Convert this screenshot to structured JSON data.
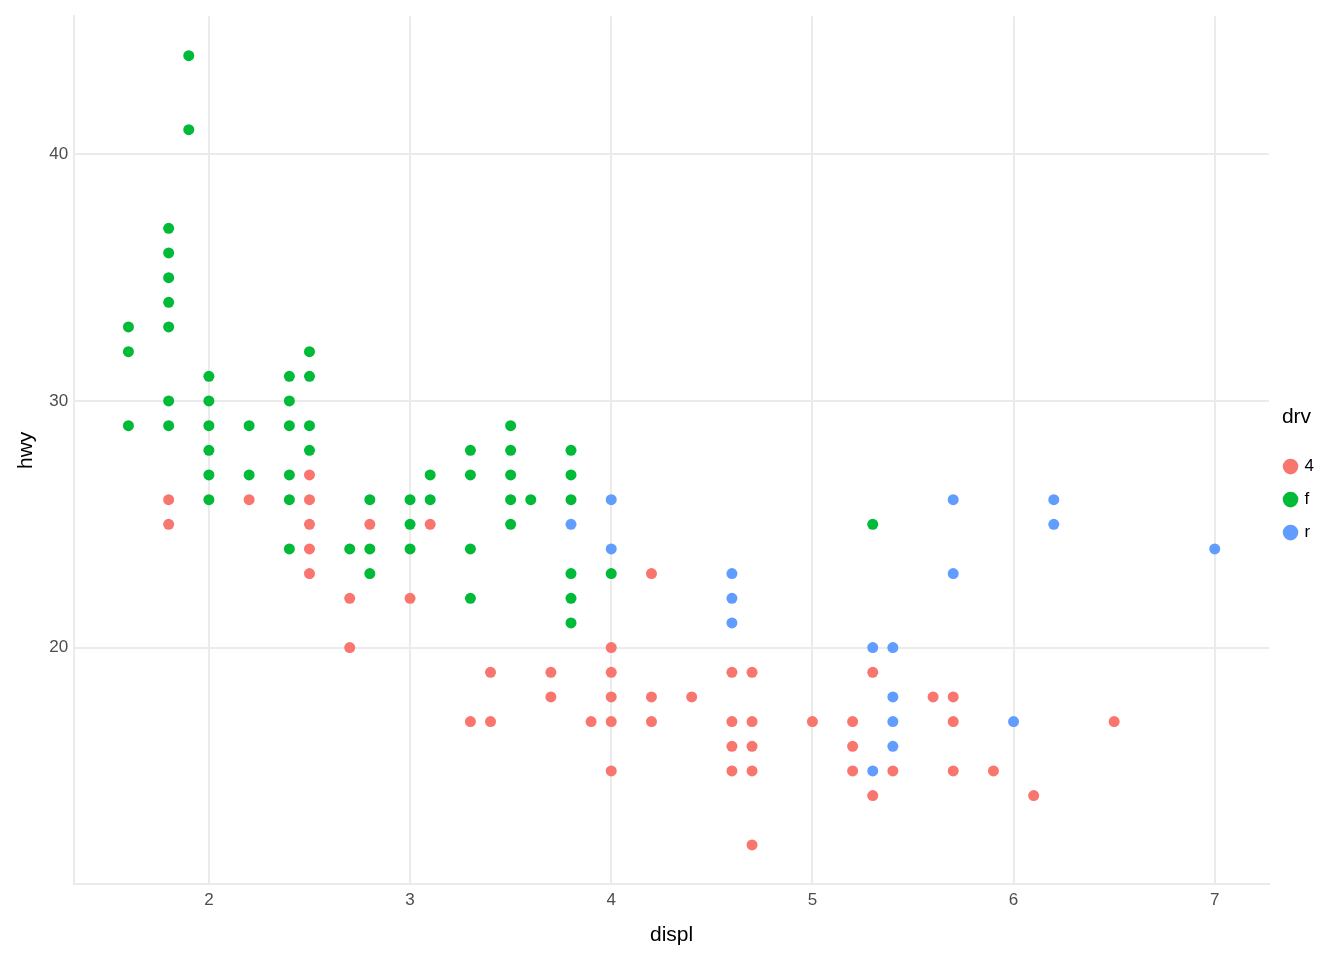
{
  "chart_data": {
    "type": "scatter",
    "x_label": "displ",
    "y_label": "hwy",
    "legend_title": "drv",
    "legend": "right",
    "grid": true,
    "marker": "circle",
    "xlim": [
      1.33,
      7.27
    ],
    "ylim": [
      10.4,
      45.6
    ],
    "xticks": [
      2,
      3,
      4,
      5,
      6,
      7
    ],
    "yticks": [
      20,
      30,
      40
    ],
    "series": [
      {
        "name": "4",
        "color": "#F8766D",
        "x": [
          1.8,
          1.8,
          2.2,
          2.5,
          2.5,
          2.5,
          2.5,
          2.5,
          2.7,
          2.7,
          2.8,
          3.0,
          3.1,
          3.3,
          3.4,
          3.4,
          3.7,
          3.7,
          3.9,
          4.0,
          4.0,
          4.0,
          4.0,
          4.0,
          4.2,
          4.2,
          4.2,
          4.4,
          4.6,
          4.6,
          4.6,
          4.6,
          4.7,
          4.7,
          4.7,
          4.7,
          4.7,
          5.0,
          5.2,
          5.2,
          5.2,
          5.3,
          5.3,
          5.4,
          5.6,
          5.7,
          5.7,
          5.7,
          5.9,
          6.1,
          6.5
        ],
        "values": [
          26,
          25,
          26,
          27,
          26,
          25,
          24,
          23,
          22,
          20,
          25,
          22,
          25,
          17,
          19,
          17,
          19,
          18,
          17,
          20,
          19,
          18,
          17,
          15,
          23,
          18,
          17,
          18,
          19,
          17,
          16,
          15,
          19,
          17,
          16,
          15,
          12,
          17,
          17,
          16,
          15,
          19,
          14,
          15,
          18,
          18,
          17,
          15,
          15,
          14,
          17
        ]
      },
      {
        "name": "f",
        "color": "#00BA38",
        "x": [
          1.6,
          1.6,
          1.6,
          1.8,
          1.8,
          1.8,
          1.8,
          1.8,
          1.8,
          1.8,
          1.9,
          1.9,
          2.0,
          2.0,
          2.0,
          2.0,
          2.0,
          2.0,
          2.2,
          2.2,
          2.4,
          2.4,
          2.4,
          2.4,
          2.4,
          2.4,
          2.5,
          2.5,
          2.5,
          2.5,
          2.7,
          2.8,
          2.8,
          2.8,
          3.0,
          3.0,
          3.0,
          3.1,
          3.1,
          3.3,
          3.3,
          3.3,
          3.3,
          3.5,
          3.5,
          3.5,
          3.5,
          3.5,
          3.6,
          3.8,
          3.8,
          3.8,
          3.8,
          3.8,
          3.8,
          4.0,
          5.3
        ],
        "values": [
          33,
          32,
          29,
          37,
          36,
          35,
          34,
          33,
          30,
          29,
          44,
          41,
          31,
          30,
          29,
          28,
          27,
          26,
          29,
          27,
          31,
          30,
          29,
          27,
          26,
          24,
          32,
          31,
          29,
          28,
          24,
          26,
          24,
          23,
          26,
          25,
          24,
          27,
          26,
          28,
          27,
          24,
          22,
          29,
          28,
          27,
          26,
          25,
          26,
          28,
          27,
          26,
          23,
          22,
          21,
          23,
          25
        ]
      },
      {
        "name": "r",
        "color": "#619CFF",
        "x": [
          3.8,
          4.0,
          4.0,
          4.6,
          4.6,
          4.6,
          5.3,
          5.3,
          5.4,
          5.4,
          5.4,
          5.4,
          5.7,
          5.7,
          6.0,
          6.2,
          6.2,
          7.0
        ],
        "values": [
          25,
          26,
          24,
          23,
          22,
          21,
          20,
          15,
          20,
          18,
          17,
          16,
          26,
          23,
          17,
          26,
          25,
          24
        ]
      }
    ]
  }
}
